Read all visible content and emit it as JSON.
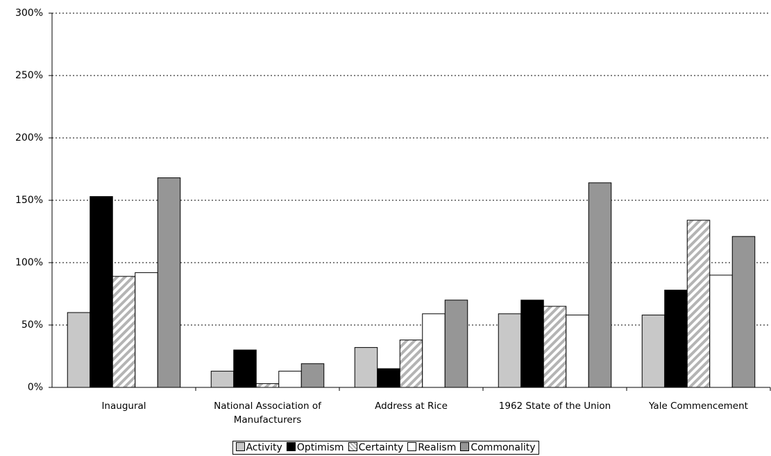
{
  "chart_data": {
    "type": "bar",
    "categories": [
      "Inaugural",
      "National Association of Manufacturers",
      "Address at Rice",
      "1962 State of the Union",
      "Yale Commencement"
    ],
    "series": [
      {
        "name": "Activity",
        "color": "#c8c8c8",
        "values": [
          60,
          13,
          32,
          59,
          58
        ]
      },
      {
        "name": "Optimism",
        "color": "#000000",
        "values": [
          153,
          30,
          15,
          70,
          78
        ]
      },
      {
        "name": "Certainty",
        "color": "#b4b4b4",
        "hatch": true,
        "values": [
          89,
          3,
          38,
          65,
          134
        ]
      },
      {
        "name": "Realism",
        "color": "#ffffff",
        "values": [
          92,
          13,
          59,
          58,
          90
        ]
      },
      {
        "name": "Commonality",
        "color": "#969696",
        "values": [
          168,
          19,
          70,
          164,
          121
        ]
      }
    ],
    "ylim": [
      0,
      300
    ],
    "yticks": [
      {
        "value": 0,
        "label": "0%"
      },
      {
        "value": 50,
        "label": "50%"
      },
      {
        "value": 100,
        "label": "100%"
      },
      {
        "value": 150,
        "label": "150%"
      },
      {
        "value": 200,
        "label": "200%"
      },
      {
        "value": 250,
        "label": "250%"
      },
      {
        "value": 300,
        "label": "300%"
      }
    ],
    "grid": true,
    "legend": "bottom"
  }
}
